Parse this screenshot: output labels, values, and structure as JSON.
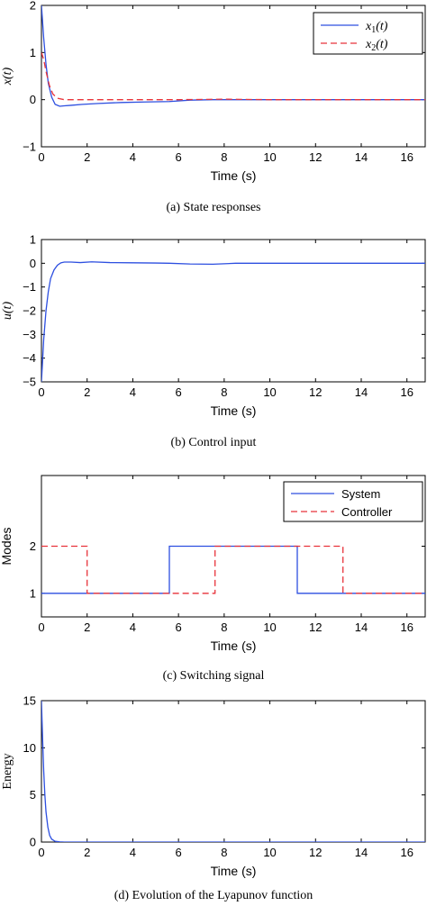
{
  "colors": {
    "series_blue": "#2d4fe0",
    "series_red": "#e8333a",
    "axis": "#000000"
  },
  "chart_data": [
    {
      "type": "line",
      "caption": "(a)  State responses",
      "xlabel": "Time (s)",
      "ylabel": "x(t)",
      "xlim": [
        0,
        16.8
      ],
      "ylim": [
        -1,
        2
      ],
      "xticks": [
        "0",
        "2",
        "4",
        "6",
        "8",
        "10",
        "12",
        "14",
        "16"
      ],
      "yticks": [
        "−1",
        "0",
        "1",
        "2"
      ],
      "legend_position": "top-right",
      "series": [
        {
          "name": "x1(t)",
          "legend_main": "x",
          "legend_sub": "1",
          "legend_tail": "(t)",
          "style": "solid",
          "color": "#2d4fe0",
          "x": [
            0,
            0.1,
            0.2,
            0.3,
            0.45,
            0.6,
            0.8,
            1.0,
            1.3,
            1.8,
            2.5,
            3.5,
            4.5,
            5.6,
            6.5,
            7.5,
            8.5,
            10,
            12,
            14,
            16.8
          ],
          "y": [
            2.0,
            1.3,
            0.75,
            0.35,
            0.05,
            -0.1,
            -0.14,
            -0.13,
            -0.12,
            -0.1,
            -0.08,
            -0.06,
            -0.05,
            -0.04,
            -0.01,
            0.0,
            0.0,
            0.0,
            0.0,
            0.0,
            0.0
          ]
        },
        {
          "name": "x2(t)",
          "legend_main": "x",
          "legend_sub": "2",
          "legend_tail": "(t)",
          "style": "dashed",
          "color": "#e8333a",
          "x": [
            0,
            0.1,
            0.2,
            0.35,
            0.5,
            0.7,
            1.0,
            1.5,
            3,
            6,
            8,
            10,
            12,
            14,
            16.8
          ],
          "y": [
            1.0,
            0.85,
            0.6,
            0.3,
            0.12,
            0.03,
            0.0,
            0.0,
            0.0,
            0.0,
            0.01,
            0.0,
            0.0,
            0.0,
            0.0
          ]
        }
      ]
    },
    {
      "type": "line",
      "caption": "(b)  Control input",
      "xlabel": "Time (s)",
      "ylabel": "u(t)",
      "xlim": [
        0,
        16.8
      ],
      "ylim": [
        -5,
        1
      ],
      "xticks": [
        "0",
        "2",
        "4",
        "6",
        "8",
        "10",
        "12",
        "14",
        "16"
      ],
      "yticks": [
        "−5",
        "−4",
        "−3",
        "−2",
        "−1",
        "0",
        "1"
      ],
      "series": [
        {
          "style": "solid",
          "color": "#2d4fe0",
          "x": [
            0,
            0.1,
            0.2,
            0.3,
            0.4,
            0.55,
            0.7,
            0.85,
            1.0,
            1.3,
            1.7,
            2.2,
            3,
            4,
            5,
            5.6,
            6.5,
            7.5,
            8.5,
            10,
            12,
            14,
            16.8
          ],
          "y": [
            -5.0,
            -3.2,
            -2.0,
            -1.2,
            -0.65,
            -0.28,
            -0.08,
            0.02,
            0.05,
            0.05,
            0.03,
            0.06,
            0.03,
            0.02,
            0.01,
            0.0,
            -0.03,
            -0.04,
            0.0,
            0.0,
            0.0,
            0.0,
            0.0
          ]
        }
      ]
    },
    {
      "type": "line",
      "caption": "(c)  Switching signal",
      "xlabel": "Time (s)",
      "ylabel": "Modes",
      "xlim": [
        0,
        16.8
      ],
      "ylim": [
        0.5,
        3.5
      ],
      "xticks": [
        "0",
        "2",
        "4",
        "6",
        "8",
        "10",
        "12",
        "14",
        "16"
      ],
      "yticks": [
        "1",
        "2"
      ],
      "ytick_values": [
        1,
        2
      ],
      "legend_position": "top-right",
      "series": [
        {
          "name": "System",
          "style": "solid",
          "color": "#2d4fe0",
          "x": [
            0,
            5.6,
            5.6,
            11.2,
            11.2,
            16.8
          ],
          "y": [
            1,
            1,
            2,
            2,
            1,
            1
          ]
        },
        {
          "name": "Controller",
          "style": "dashed",
          "color": "#e8333a",
          "x": [
            0,
            2.0,
            2.0,
            7.6,
            7.6,
            13.2,
            13.2,
            16.8
          ],
          "y": [
            2,
            2,
            1,
            1,
            2,
            2,
            1,
            1
          ]
        }
      ]
    },
    {
      "type": "line",
      "caption": "(d)  Evolution of the Lyapunov function",
      "xlabel": "Time (s)",
      "ylabel": "Energy",
      "xlim": [
        0,
        16.8
      ],
      "ylim": [
        0,
        15
      ],
      "xticks": [
        "0",
        "2",
        "4",
        "6",
        "8",
        "10",
        "12",
        "14",
        "16"
      ],
      "yticks": [
        "0",
        "5",
        "10",
        "15"
      ],
      "series": [
        {
          "style": "solid",
          "color": "#2d4fe0",
          "x": [
            0,
            0.05,
            0.1,
            0.15,
            0.2,
            0.28,
            0.36,
            0.45,
            0.6,
            0.8,
            1.0,
            2,
            4,
            8,
            12,
            16.8
          ],
          "y": [
            15,
            11,
            7.5,
            5,
            3.2,
            1.6,
            0.7,
            0.3,
            0.08,
            0.02,
            0.0,
            0.0,
            0.0,
            0.0,
            0.0,
            0.0
          ]
        }
      ]
    }
  ]
}
